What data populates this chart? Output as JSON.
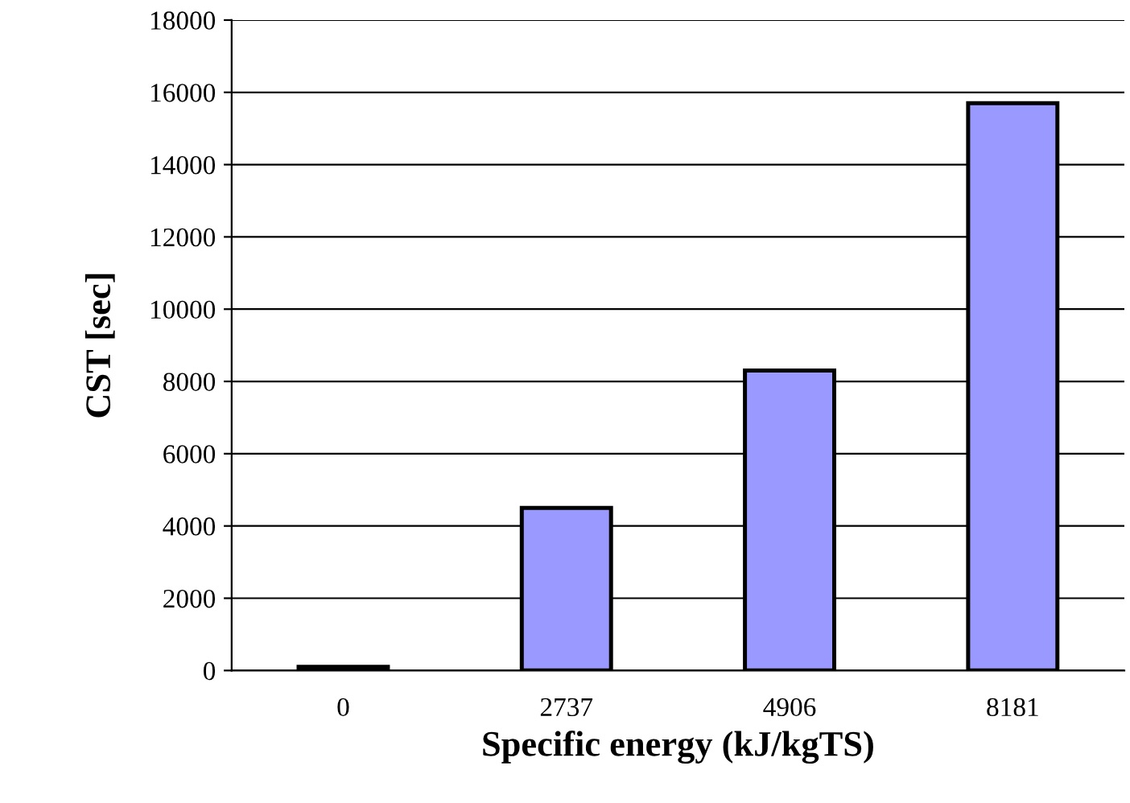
{
  "chart_data": {
    "type": "bar",
    "xlabel": "Specific energy (kJ/kgTS)",
    "ylabel": "CST [sec]",
    "categories": [
      "0",
      "2737",
      "4906",
      "8181"
    ],
    "values": [
      100,
      4500,
      8300,
      15700
    ],
    "color": "#9999ff",
    "ylim": [
      0,
      18000
    ],
    "yticks": [
      0,
      2000,
      4000,
      6000,
      8000,
      10000,
      12000,
      14000,
      16000,
      18000
    ],
    "grid": "y"
  }
}
